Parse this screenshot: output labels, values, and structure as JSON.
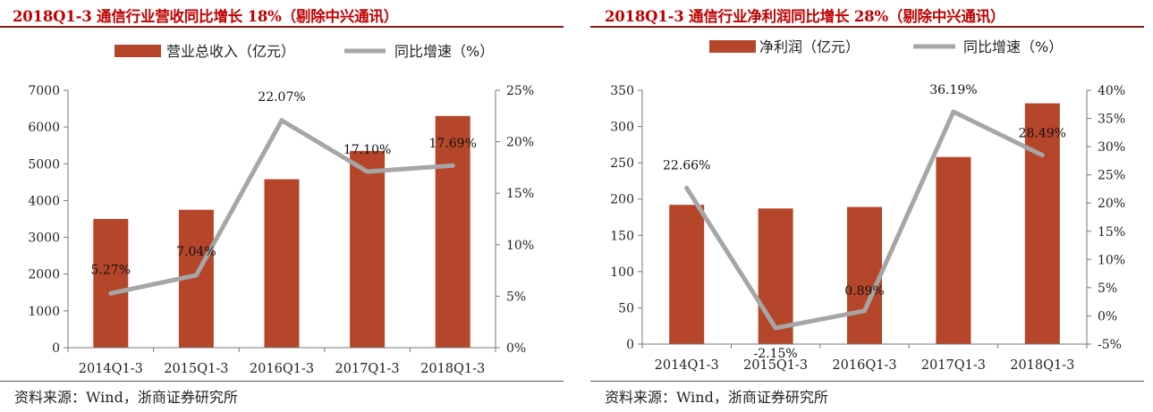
{
  "source": "资料来源：Wind，浙商证券研究所",
  "colors": {
    "bar": "#b5462a",
    "line": "#a6a6a6",
    "title": "#c00000"
  },
  "chart_data": [
    {
      "type": "bar",
      "title": "2018Q1-3 通信行业营收同比增长 18%（剔除中兴通讯）",
      "categories": [
        "2014Q1-3",
        "2015Q1-3",
        "2016Q1-3",
        "2017Q1-3",
        "2018Q1-3"
      ],
      "legend_position": "top",
      "series": [
        {
          "name": "营业总收入（亿元）",
          "type": "bar",
          "axis": "left",
          "values": [
            3500,
            3750,
            4580,
            5350,
            6300
          ]
        },
        {
          "name": "同比增速（%）",
          "type": "line",
          "axis": "right",
          "values": [
            5.27,
            7.04,
            22.07,
            17.1,
            17.69
          ],
          "data_labels": [
            "5.27%",
            "7.04%",
            "22.07%",
            "17.10%",
            "17.69%"
          ]
        }
      ],
      "y_left": {
        "ylim": [
          0,
          7000
        ],
        "ticks": [
          0,
          1000,
          2000,
          3000,
          4000,
          5000,
          6000,
          7000
        ],
        "tick_labels": [
          "0",
          "1000",
          "2000",
          "3000",
          "4000",
          "5000",
          "6000",
          "7000"
        ]
      },
      "y_right": {
        "ylim": [
          0,
          25
        ],
        "ticks": [
          0,
          5,
          10,
          15,
          20,
          25
        ],
        "tick_labels": [
          "0%",
          "5%",
          "10%",
          "15%",
          "20%",
          "25%"
        ]
      },
      "grid": false
    },
    {
      "type": "bar",
      "title": "2018Q1-3 通信行业净利润同比增长 28%（剔除中兴通讯）",
      "categories": [
        "2014Q1-3",
        "2015Q1-3",
        "2016Q1-3",
        "2017Q1-3",
        "2018Q1-3"
      ],
      "legend_position": "top",
      "series": [
        {
          "name": "净利润（亿元）",
          "type": "bar",
          "axis": "left",
          "values": [
            192,
            187,
            189,
            258,
            332
          ]
        },
        {
          "name": "同比增速（%）",
          "type": "line",
          "axis": "right",
          "values": [
            22.66,
            -2.15,
            0.89,
            36.19,
            28.49
          ],
          "data_labels": [
            "22.66%",
            "-2.15%",
            "0.89%",
            "36.19%",
            "28.49%"
          ]
        }
      ],
      "y_left": {
        "ylim": [
          0,
          350
        ],
        "ticks": [
          0,
          50,
          100,
          150,
          200,
          250,
          300,
          350
        ],
        "tick_labels": [
          "0",
          "50",
          "100",
          "150",
          "200",
          "250",
          "300",
          "350"
        ]
      },
      "y_right": {
        "ylim": [
          -5,
          40
        ],
        "ticks": [
          -5,
          0,
          5,
          10,
          15,
          20,
          25,
          30,
          35,
          40
        ],
        "tick_labels": [
          "-5%",
          "0%",
          "5%",
          "10%",
          "15%",
          "20%",
          "25%",
          "30%",
          "35%",
          "40%"
        ]
      },
      "grid": false
    }
  ]
}
